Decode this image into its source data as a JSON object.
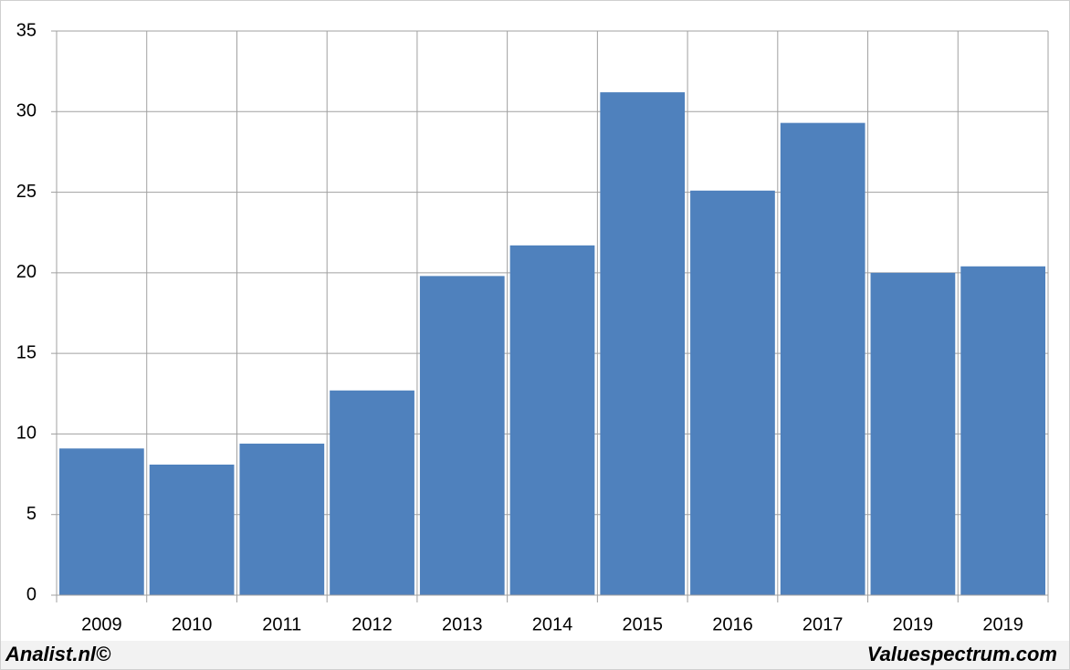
{
  "chart_data": {
    "type": "bar",
    "categories": [
      "2009",
      "2010",
      "2011",
      "2012",
      "2013",
      "2014",
      "2015",
      "2016",
      "2017",
      "2019",
      "2019"
    ],
    "values": [
      9.1,
      8.1,
      9.4,
      12.7,
      19.8,
      21.7,
      31.2,
      25.1,
      29.3,
      20.0,
      20.4
    ],
    "color": "#4f81bd",
    "ylim": [
      0,
      35
    ],
    "yticks": [
      0,
      5,
      10,
      15,
      20,
      25,
      30,
      35
    ],
    "grid": true,
    "source_left": "Analist.nl©",
    "source_right": "Valuespectrum.com"
  }
}
